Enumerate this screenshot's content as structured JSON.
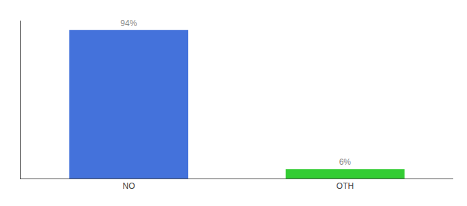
{
  "chart_data": {
    "type": "bar",
    "categories": [
      "NO",
      "OTH"
    ],
    "values": [
      94,
      6
    ],
    "value_labels": [
      "94%",
      "6%"
    ],
    "colors": [
      "#4472db",
      "#33cc33"
    ],
    "ylim": [
      0,
      100
    ],
    "grid": false,
    "data_labels": true,
    "tick_labels": "x"
  }
}
